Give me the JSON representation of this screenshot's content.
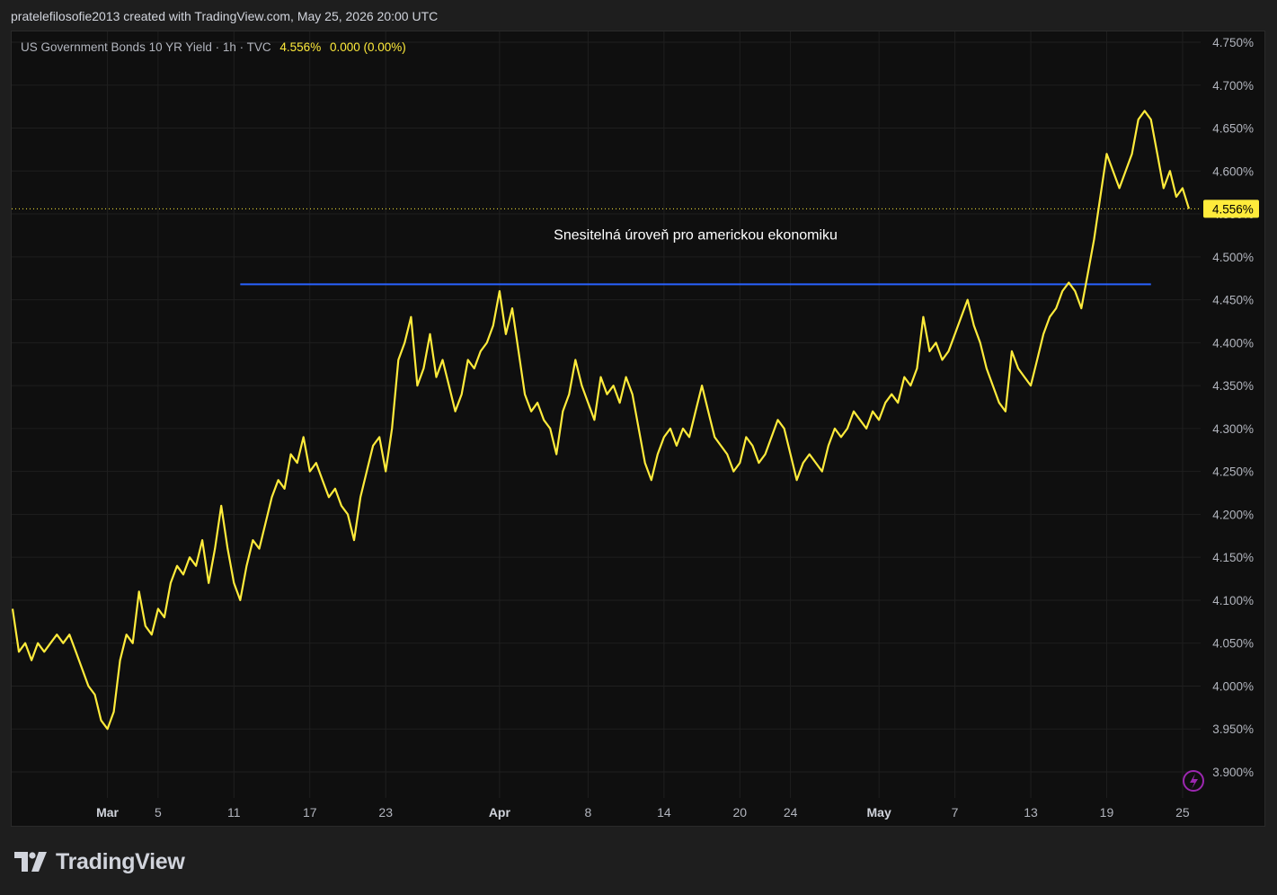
{
  "header": {
    "attribution": "pratelefilosofie2013 created with TradingView.com, May 25, 2026 20:00 UTC"
  },
  "legend": {
    "symbol": "US Government Bonds 10 YR Yield · 1h · TVC",
    "last": "4.556%",
    "change": "0.000 (0.00%)"
  },
  "brand": {
    "name": "TradingView"
  },
  "colors": {
    "series": "#ffeb3b",
    "hline": "#2962ff",
    "background": "#0f0f0f",
    "grid": "#1f1f1f"
  },
  "chart_data": {
    "type": "line",
    "ylim": [
      3.88,
      4.76
    ],
    "y_ticks": [
      "4.750%",
      "4.700%",
      "4.650%",
      "4.600%",
      "4.550%",
      "4.500%",
      "4.450%",
      "4.400%",
      "4.350%",
      "4.300%",
      "4.250%",
      "4.200%",
      "4.150%",
      "4.100%",
      "4.050%",
      "4.000%",
      "3.950%",
      "3.900%"
    ],
    "y_tick_values": [
      4.75,
      4.7,
      4.65,
      4.6,
      4.55,
      4.5,
      4.45,
      4.4,
      4.35,
      4.3,
      4.25,
      4.2,
      4.15,
      4.1,
      4.05,
      4.0,
      3.95,
      3.9
    ],
    "x_ticks": [
      {
        "label": "Mar",
        "day": 0,
        "bold": true
      },
      {
        "label": "5",
        "day": 4
      },
      {
        "label": "11",
        "day": 10
      },
      {
        "label": "17",
        "day": 16
      },
      {
        "label": "23",
        "day": 22
      },
      {
        "label": "Apr",
        "day": 31,
        "bold": true
      },
      {
        "label": "8",
        "day": 38
      },
      {
        "label": "14",
        "day": 44
      },
      {
        "label": "20",
        "day": 50
      },
      {
        "label": "24",
        "day": 54
      },
      {
        "label": "May",
        "day": 61,
        "bold": true
      },
      {
        "label": "7",
        "day": 67
      },
      {
        "label": "13",
        "day": 73
      },
      {
        "label": "19",
        "day": 79
      },
      {
        "label": "25",
        "day": 85
      }
    ],
    "xlim_days": [
      -7.5,
      86.0
    ],
    "series": [
      {
        "points": [
          [
            -7.5,
            4.09
          ],
          [
            -7.0,
            4.04
          ],
          [
            -6.5,
            4.05
          ],
          [
            -6.0,
            4.03
          ],
          [
            -5.5,
            4.05
          ],
          [
            -5.0,
            4.04
          ],
          [
            -4.5,
            4.05
          ],
          [
            -4.0,
            4.06
          ],
          [
            -3.5,
            4.05
          ],
          [
            -3.0,
            4.06
          ],
          [
            -2.5,
            4.04
          ],
          [
            -2.0,
            4.02
          ],
          [
            -1.5,
            4.0
          ],
          [
            -1.0,
            3.99
          ],
          [
            -0.5,
            3.96
          ],
          [
            0.0,
            3.95
          ],
          [
            0.5,
            3.97
          ],
          [
            1.0,
            4.03
          ],
          [
            1.5,
            4.06
          ],
          [
            2.0,
            4.05
          ],
          [
            2.5,
            4.11
          ],
          [
            3.0,
            4.07
          ],
          [
            3.5,
            4.06
          ],
          [
            4.0,
            4.09
          ],
          [
            4.5,
            4.08
          ],
          [
            5.0,
            4.12
          ],
          [
            5.5,
            4.14
          ],
          [
            6.0,
            4.13
          ],
          [
            6.5,
            4.15
          ],
          [
            7.0,
            4.14
          ],
          [
            7.5,
            4.17
          ],
          [
            8.0,
            4.12
          ],
          [
            8.5,
            4.16
          ],
          [
            9.0,
            4.21
          ],
          [
            9.5,
            4.16
          ],
          [
            10.0,
            4.12
          ],
          [
            10.5,
            4.1
          ],
          [
            11.0,
            4.14
          ],
          [
            11.5,
            4.17
          ],
          [
            12.0,
            4.16
          ],
          [
            12.5,
            4.19
          ],
          [
            13.0,
            4.22
          ],
          [
            13.5,
            4.24
          ],
          [
            14.0,
            4.23
          ],
          [
            14.5,
            4.27
          ],
          [
            15.0,
            4.26
          ],
          [
            15.5,
            4.29
          ],
          [
            16.0,
            4.25
          ],
          [
            16.5,
            4.26
          ],
          [
            17.0,
            4.24
          ],
          [
            17.5,
            4.22
          ],
          [
            18.0,
            4.23
          ],
          [
            18.5,
            4.21
          ],
          [
            19.0,
            4.2
          ],
          [
            19.5,
            4.17
          ],
          [
            20.0,
            4.22
          ],
          [
            20.5,
            4.25
          ],
          [
            21.0,
            4.28
          ],
          [
            21.5,
            4.29
          ],
          [
            22.0,
            4.25
          ],
          [
            22.5,
            4.3
          ],
          [
            23.0,
            4.38
          ],
          [
            23.5,
            4.4
          ],
          [
            24.0,
            4.43
          ],
          [
            24.5,
            4.35
          ],
          [
            25.0,
            4.37
          ],
          [
            25.5,
            4.41
          ],
          [
            26.0,
            4.36
          ],
          [
            26.5,
            4.38
          ],
          [
            27.0,
            4.35
          ],
          [
            27.5,
            4.32
          ],
          [
            28.0,
            4.34
          ],
          [
            28.5,
            4.38
          ],
          [
            29.0,
            4.37
          ],
          [
            29.5,
            4.39
          ],
          [
            30.0,
            4.4
          ],
          [
            30.5,
            4.42
          ],
          [
            31.0,
            4.46
          ],
          [
            31.5,
            4.41
          ],
          [
            32.0,
            4.44
          ],
          [
            32.5,
            4.39
          ],
          [
            33.0,
            4.34
          ],
          [
            33.5,
            4.32
          ],
          [
            34.0,
            4.33
          ],
          [
            34.5,
            4.31
          ],
          [
            35.0,
            4.3
          ],
          [
            35.5,
            4.27
          ],
          [
            36.0,
            4.32
          ],
          [
            36.5,
            4.34
          ],
          [
            37.0,
            4.38
          ],
          [
            37.5,
            4.35
          ],
          [
            38.0,
            4.33
          ],
          [
            38.5,
            4.31
          ],
          [
            39.0,
            4.36
          ],
          [
            39.5,
            4.34
          ],
          [
            40.0,
            4.35
          ],
          [
            40.5,
            4.33
          ],
          [
            41.0,
            4.36
          ],
          [
            41.5,
            4.34
          ],
          [
            42.0,
            4.3
          ],
          [
            42.5,
            4.26
          ],
          [
            43.0,
            4.24
          ],
          [
            43.5,
            4.27
          ],
          [
            44.0,
            4.29
          ],
          [
            44.5,
            4.3
          ],
          [
            45.0,
            4.28
          ],
          [
            45.5,
            4.3
          ],
          [
            46.0,
            4.29
          ],
          [
            46.5,
            4.32
          ],
          [
            47.0,
            4.35
          ],
          [
            47.5,
            4.32
          ],
          [
            48.0,
            4.29
          ],
          [
            48.5,
            4.28
          ],
          [
            49.0,
            4.27
          ],
          [
            49.5,
            4.25
          ],
          [
            50.0,
            4.26
          ],
          [
            50.5,
            4.29
          ],
          [
            51.0,
            4.28
          ],
          [
            51.5,
            4.26
          ],
          [
            52.0,
            4.27
          ],
          [
            52.5,
            4.29
          ],
          [
            53.0,
            4.31
          ],
          [
            53.5,
            4.3
          ],
          [
            54.0,
            4.27
          ],
          [
            54.5,
            4.24
          ],
          [
            55.0,
            4.26
          ],
          [
            55.5,
            4.27
          ],
          [
            56.0,
            4.26
          ],
          [
            56.5,
            4.25
          ],
          [
            57.0,
            4.28
          ],
          [
            57.5,
            4.3
          ],
          [
            58.0,
            4.29
          ],
          [
            58.5,
            4.3
          ],
          [
            59.0,
            4.32
          ],
          [
            59.5,
            4.31
          ],
          [
            60.0,
            4.3
          ],
          [
            60.5,
            4.32
          ],
          [
            61.0,
            4.31
          ],
          [
            61.5,
            4.33
          ],
          [
            62.0,
            4.34
          ],
          [
            62.5,
            4.33
          ],
          [
            63.0,
            4.36
          ],
          [
            63.5,
            4.35
          ],
          [
            64.0,
            4.37
          ],
          [
            64.5,
            4.43
          ],
          [
            65.0,
            4.39
          ],
          [
            65.5,
            4.4
          ],
          [
            66.0,
            4.38
          ],
          [
            66.5,
            4.39
          ],
          [
            67.0,
            4.41
          ],
          [
            67.5,
            4.43
          ],
          [
            68.0,
            4.45
          ],
          [
            68.5,
            4.42
          ],
          [
            69.0,
            4.4
          ],
          [
            69.5,
            4.37
          ],
          [
            70.0,
            4.35
          ],
          [
            70.5,
            4.33
          ],
          [
            71.0,
            4.32
          ],
          [
            71.5,
            4.39
          ],
          [
            72.0,
            4.37
          ],
          [
            72.5,
            4.36
          ],
          [
            73.0,
            4.35
          ],
          [
            73.5,
            4.38
          ],
          [
            74.0,
            4.41
          ],
          [
            74.5,
            4.43
          ],
          [
            75.0,
            4.44
          ],
          [
            75.5,
            4.46
          ],
          [
            76.0,
            4.47
          ],
          [
            76.5,
            4.46
          ],
          [
            77.0,
            4.44
          ],
          [
            77.5,
            4.48
          ],
          [
            78.0,
            4.52
          ],
          [
            78.5,
            4.57
          ],
          [
            79.0,
            4.62
          ],
          [
            79.5,
            4.6
          ],
          [
            80.0,
            4.58
          ],
          [
            80.5,
            4.6
          ],
          [
            81.0,
            4.62
          ],
          [
            81.5,
            4.66
          ],
          [
            82.0,
            4.67
          ],
          [
            82.5,
            4.66
          ],
          [
            83.0,
            4.62
          ],
          [
            83.5,
            4.58
          ],
          [
            84.0,
            4.6
          ],
          [
            84.5,
            4.57
          ],
          [
            85.0,
            4.58
          ],
          [
            85.5,
            4.556
          ]
        ]
      }
    ],
    "last_value_label": "4.556%",
    "last_value": 4.556,
    "horizontal_line": {
      "y": 4.468,
      "from_day": 10.5,
      "to_day": 82.5
    },
    "annotation": {
      "text": "Snesitelná úroveň pro americkou ekonomiku",
      "y": 4.52,
      "day": 46.5
    },
    "grid": true
  }
}
